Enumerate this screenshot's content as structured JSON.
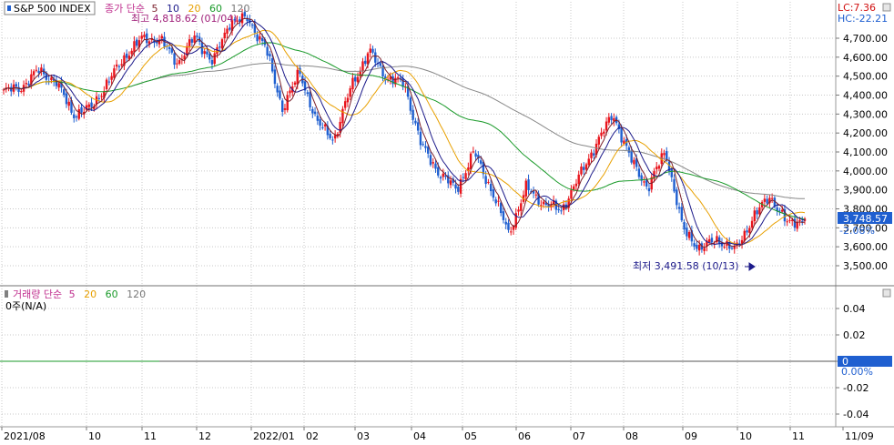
{
  "header": {
    "symbol": "S&P 500 INDEX",
    "legend_price_prefix": "종가 단순",
    "ma_periods": [
      "5",
      "10",
      "20",
      "60",
      "120"
    ],
    "high_label": "최고 4,818.62 (01/04)",
    "lc_label": "LC:7.36",
    "hc_label": "HC:-22.21"
  },
  "low_annotation": "최저 3,491.58 (10/13)",
  "current": {
    "price": "3,748.57",
    "change": "-2.08%"
  },
  "volume_panel": {
    "legend_prefix": "거래량 단순",
    "ma_periods": [
      "5",
      "20",
      "60",
      "120"
    ],
    "value_label": "0주(N/A)",
    "current_value": "0",
    "current_change": "0.00%",
    "ticks": [
      "0.04",
      "0.02",
      "0",
      "-0.02",
      "-0.04"
    ]
  },
  "colors": {
    "up": "#e8141c",
    "down": "#1f5fd0",
    "ma5": "#7a1f2a",
    "ma10": "#1c1a8a",
    "ma20": "#e8a000",
    "ma60": "#1a9a2a",
    "ma120": "#888888",
    "grid": "#c8c8c8",
    "accent": "#1f5fd0"
  },
  "chart_data": {
    "type": "candlestick",
    "title": "S&P 500 INDEX",
    "x_tick_labels": [
      "2021/08",
      "10",
      "11",
      "12",
      "2022/01",
      "02",
      "03",
      "04",
      "05",
      "06",
      "07",
      "08",
      "09",
      "10",
      "11",
      "11/09"
    ],
    "y_tick_labels": [
      "4,700.00",
      "4,600.00",
      "4,500.00",
      "4,400.00",
      "4,300.00",
      "4,200.00",
      "4,100.00",
      "4,000.00",
      "3,900.00",
      "3,800.00",
      "3,700.00",
      "3,600.00",
      "3,500.00"
    ],
    "ylim": [
      3460,
      4850
    ],
    "high": {
      "value": 4818.62,
      "date": "01/04"
    },
    "low": {
      "value": 3491.58,
      "date": "10/13"
    },
    "last": 3748.57,
    "close_path": [
      [
        "2021/08",
        4420
      ],
      [
        "08/20",
        4440
      ],
      [
        "09/02",
        4530
      ],
      [
        "09/15",
        4470
      ],
      [
        "09/30",
        4300
      ],
      [
        "10/05",
        4330
      ],
      [
        "10/15",
        4470
      ],
      [
        "10/29",
        4610
      ],
      [
        "11/08",
        4700
      ],
      [
        "11/18",
        4690
      ],
      [
        "11/30",
        4570
      ],
      [
        "12/10",
        4710
      ],
      [
        "12/20",
        4570
      ],
      [
        "12/27",
        4790
      ],
      [
        "2022/01/04",
        4800
      ],
      [
        "01/14",
        4660
      ],
      [
        "01/27",
        4330
      ],
      [
        "02/09",
        4520
      ],
      [
        "02/23",
        4250
      ],
      [
        "03/08",
        4170
      ],
      [
        "03/18",
        4460
      ],
      [
        "03/29",
        4630
      ],
      [
        "04/08",
        4490
      ],
      [
        "04/20",
        4460
      ],
      [
        "04/29",
        4130
      ],
      [
        "05/09",
        3990
      ],
      [
        "05/20",
        3900
      ],
      [
        "06/01",
        4100
      ],
      [
        "06/10",
        3900
      ],
      [
        "06/16",
        3670
      ],
      [
        "06/24",
        3910
      ],
      [
        "07/05",
        3830
      ],
      [
        "07/14",
        3790
      ],
      [
        "07/25",
        3960
      ],
      [
        "08/05",
        4140
      ],
      [
        "08/16",
        4300
      ],
      [
        "08/26",
        4060
      ],
      [
        "09/06",
        3910
      ],
      [
        "09/13",
        4110
      ],
      [
        "09/23",
        3690
      ],
      [
        "09/30",
        3590
      ],
      [
        "10/07",
        3640
      ],
      [
        "10/13",
        3580
      ],
      [
        "10/21",
        3750
      ],
      [
        "10/31",
        3870
      ],
      [
        "11/03",
        3720
      ],
      [
        "11/09",
        3748.57
      ]
    ]
  }
}
